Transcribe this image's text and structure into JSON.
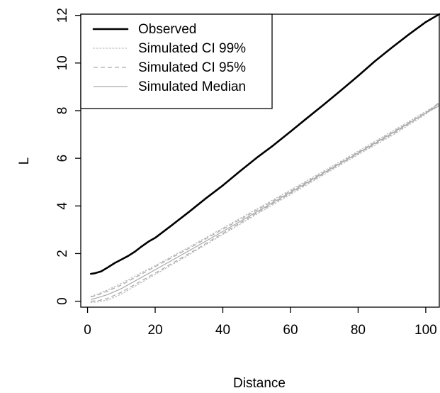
{
  "chart_data": {
    "type": "line",
    "title": "",
    "xlabel": "Distance",
    "ylabel": "L",
    "xlim": [
      -2,
      104
    ],
    "ylim": [
      -0.25,
      12.05
    ],
    "x_ticks": [
      0,
      20,
      40,
      60,
      80,
      100
    ],
    "y_ticks": [
      0,
      2,
      4,
      6,
      8,
      10,
      12
    ],
    "grid": false,
    "legend_position": "top-left",
    "series": [
      {
        "name": "Observed",
        "color": "#000000",
        "style": "solid-thick",
        "x": [
          1,
          2,
          4,
          6,
          8,
          10,
          12,
          14,
          16,
          18,
          20,
          25,
          30,
          35,
          40,
          45,
          50,
          55,
          60,
          65,
          70,
          75,
          80,
          85,
          90,
          95,
          100,
          104
        ],
        "y": [
          1.15,
          1.17,
          1.25,
          1.42,
          1.6,
          1.75,
          1.9,
          2.08,
          2.3,
          2.5,
          2.66,
          3.2,
          3.75,
          4.32,
          4.86,
          5.45,
          6.02,
          6.55,
          7.12,
          7.7,
          8.27,
          8.86,
          9.46,
          10.08,
          10.65,
          11.2,
          11.72,
          12.05
        ]
      },
      {
        "name": "Simulated CI 99%",
        "color": "#bbbbbb",
        "style": "dotted",
        "x": [
          1,
          3,
          6,
          10,
          20,
          30,
          40,
          50,
          60,
          70,
          80,
          90,
          100,
          104
        ],
        "y": [
          0.2,
          0.3,
          0.48,
          0.75,
          1.5,
          2.27,
          3.07,
          3.87,
          4.67,
          5.48,
          6.3,
          7.13,
          7.97,
          8.3
        ]
      },
      {
        "name": "Simulated CI 99%",
        "color": "#bbbbbb",
        "style": "dotted",
        "x": [
          1,
          3,
          6,
          10,
          20,
          30,
          40,
          50,
          60,
          70,
          80,
          90,
          100,
          104
        ],
        "y": [
          -0.05,
          -0.03,
          0.05,
          0.3,
          1.12,
          1.95,
          2.8,
          3.65,
          4.48,
          5.32,
          6.15,
          6.95,
          7.85,
          8.3
        ]
      },
      {
        "name": "Simulated CI 95%",
        "color": "#aaaaaa",
        "style": "dashed",
        "x": [
          1,
          3,
          6,
          10,
          20,
          30,
          40,
          50,
          60,
          70,
          80,
          90,
          100,
          104
        ],
        "y": [
          0.18,
          0.26,
          0.43,
          0.68,
          1.45,
          2.22,
          3.02,
          3.82,
          4.62,
          5.43,
          6.25,
          7.08,
          7.92,
          8.25
        ]
      },
      {
        "name": "Simulated CI 95%",
        "color": "#aaaaaa",
        "style": "dashed",
        "x": [
          1,
          3,
          6,
          10,
          20,
          30,
          40,
          50,
          60,
          70,
          80,
          90,
          100,
          104
        ],
        "y": [
          0.0,
          0.02,
          0.12,
          0.38,
          1.18,
          2.0,
          2.85,
          3.7,
          4.53,
          5.37,
          6.2,
          7.0,
          7.9,
          8.35
        ]
      },
      {
        "name": "Simulated Median",
        "color": "#aaaaaa",
        "style": "solid-thin",
        "x": [
          1,
          3,
          6,
          10,
          20,
          30,
          40,
          50,
          60,
          70,
          80,
          90,
          100,
          104
        ],
        "y": [
          0.07,
          0.15,
          0.28,
          0.53,
          1.32,
          2.12,
          2.93,
          3.75,
          4.57,
          5.4,
          6.22,
          7.05,
          7.9,
          8.2
        ]
      }
    ],
    "legend": [
      {
        "label": "Observed",
        "style": "solid-thick",
        "color": "#000000"
      },
      {
        "label": "Simulated CI 99%",
        "style": "dotted",
        "color": "#bbbbbb"
      },
      {
        "label": "Simulated CI 95%",
        "style": "dashed",
        "color": "#aaaaaa"
      },
      {
        "label": "Simulated Median",
        "style": "solid-thin",
        "color": "#aaaaaa"
      }
    ]
  }
}
